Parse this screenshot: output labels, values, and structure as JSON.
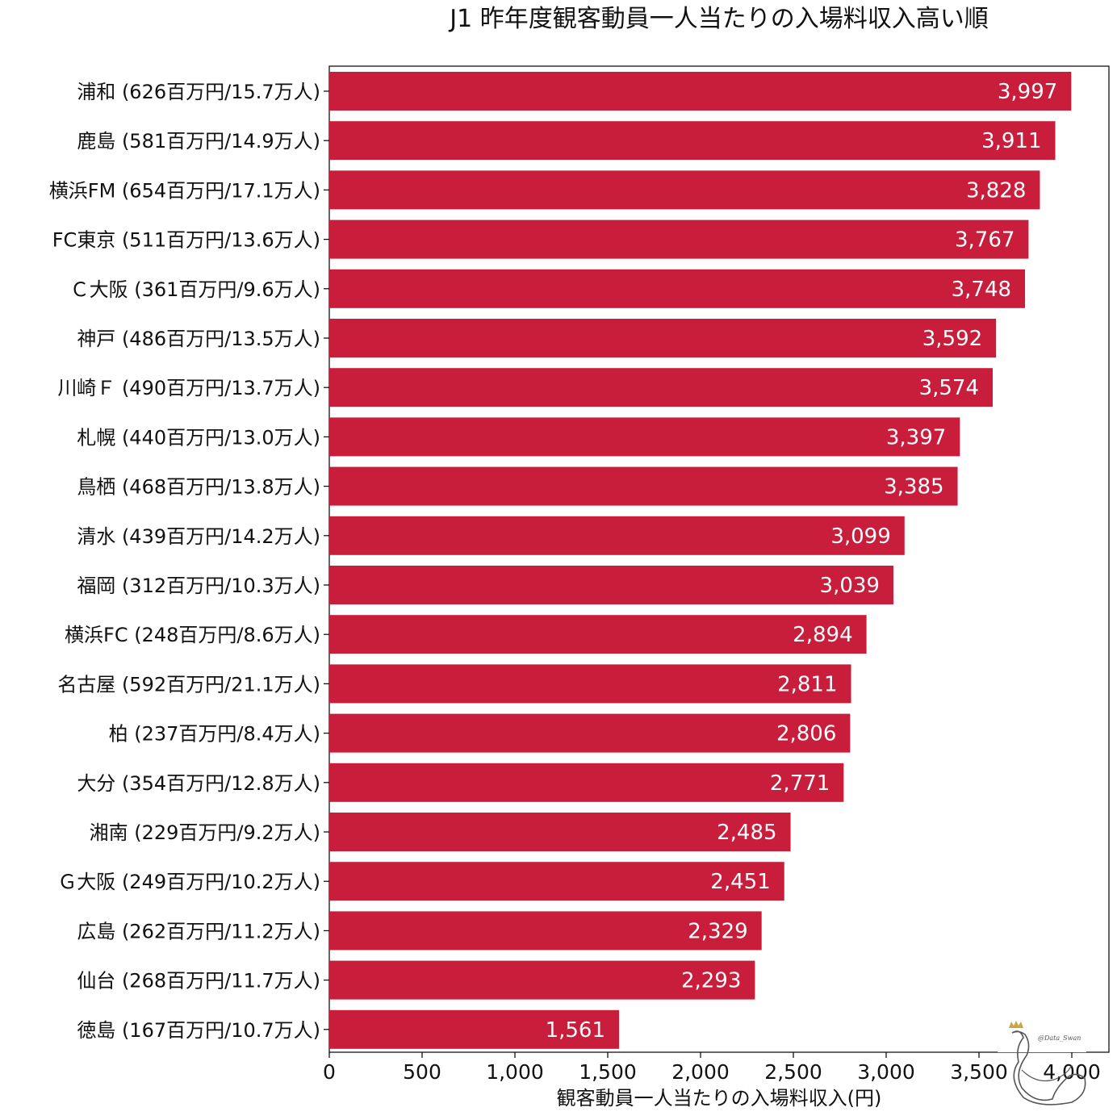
{
  "chart_data": {
    "type": "bar",
    "orientation": "horizontal",
    "title": "J1 昨年度観客動員一人当たりの入場料収入高い順",
    "xlabel": "観客動員一人当たりの入場料収入(円)",
    "ylabel": "",
    "xlim": [
      0,
      4200
    ],
    "x_ticks": [
      {
        "value": 0,
        "label": "0"
      },
      {
        "value": 500,
        "label": "500"
      },
      {
        "value": 1000,
        "label": "1,000"
      },
      {
        "value": 1500,
        "label": "1,500"
      },
      {
        "value": 2000,
        "label": "2,000"
      },
      {
        "value": 2500,
        "label": "2,500"
      },
      {
        "value": 3000,
        "label": "3,000"
      },
      {
        "value": 3500,
        "label": "3,500"
      },
      {
        "value": 4000,
        "label": "4,000"
      }
    ],
    "categories": [
      "浦和 (626百万円/15.7万人)",
      "鹿島 (581百万円/14.9万人)",
      "横浜FM (654百万円/17.1万人)",
      "FC東京 (511百万円/13.6万人)",
      "Ｃ大阪 (361百万円/9.6万人)",
      "神戸 (486百万円/13.5万人)",
      "川崎Ｆ (490百万円/13.7万人)",
      "札幌 (440百万円/13.0万人)",
      "鳥栖 (468百万円/13.8万人)",
      "清水 (439百万円/14.2万人)",
      "福岡 (312百万円/10.3万人)",
      "横浜FC (248百万円/8.6万人)",
      "名古屋 (592百万円/21.1万人)",
      "柏 (237百万円/8.4万人)",
      "大分 (354百万円/12.8万人)",
      "湘南 (229百万円/9.2万人)",
      "Ｇ大阪 (249百万円/10.2万人)",
      "広島 (262百万円/11.2万人)",
      "仙台 (268百万円/11.7万人)",
      "徳島 (167百万円/10.7万人)"
    ],
    "values": [
      3997,
      3911,
      3828,
      3767,
      3748,
      3592,
      3574,
      3397,
      3385,
      3099,
      3039,
      2894,
      2811,
      2806,
      2771,
      2485,
      2451,
      2329,
      2293,
      1561
    ],
    "value_labels": [
      "3,997",
      "3,911",
      "3,828",
      "3,767",
      "3,748",
      "3,592",
      "3,574",
      "3,397",
      "3,385",
      "3,099",
      "3,039",
      "2,894",
      "2,811",
      "2,806",
      "2,771",
      "2,485",
      "2,451",
      "2,329",
      "2,293",
      "1,561"
    ],
    "bar_color": "#c91d3c",
    "value_label_color": "#ffffff",
    "grid": false,
    "legend": "none"
  },
  "watermark": {
    "text": "@Data_Swan",
    "icon": "swan-logo-icon"
  }
}
